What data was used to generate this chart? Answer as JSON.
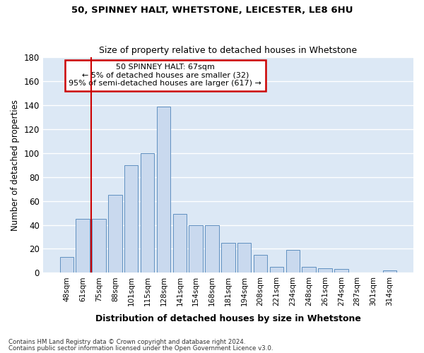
{
  "title1": "50, SPINNEY HALT, WHETSTONE, LEICESTER, LE8 6HU",
  "title2": "Size of property relative to detached houses in Whetstone",
  "xlabel": "Distribution of detached houses by size in Whetstone",
  "ylabel": "Number of detached properties",
  "categories": [
    "48sqm",
    "61sqm",
    "75sqm",
    "88sqm",
    "101sqm",
    "115sqm",
    "128sqm",
    "141sqm",
    "154sqm",
    "168sqm",
    "181sqm",
    "194sqm",
    "208sqm",
    "221sqm",
    "234sqm",
    "248sqm",
    "261sqm",
    "274sqm",
    "287sqm",
    "301sqm",
    "314sqm"
  ],
  "values": [
    13,
    45,
    45,
    65,
    90,
    100,
    139,
    49,
    40,
    40,
    25,
    25,
    15,
    5,
    19,
    5,
    4,
    3,
    0,
    0,
    2
  ],
  "bar_color": "#c9d9ee",
  "bar_edge_color": "#6090c0",
  "bar_width": 0.85,
  "ylim": [
    0,
    180
  ],
  "yticks": [
    0,
    20,
    40,
    60,
    80,
    100,
    120,
    140,
    160,
    180
  ],
  "red_line_x": 1.5,
  "annotation_title": "50 SPINNEY HALT: 67sqm",
  "annotation_line1": "← 5% of detached houses are smaller (32)",
  "annotation_line2": "95% of semi-detached houses are larger (617) →",
  "annotation_box_color": "#ffffff",
  "annotation_border_color": "#cc0000",
  "bg_color": "#dce8f5",
  "grid_color": "#ffffff",
  "footer1": "Contains HM Land Registry data © Crown copyright and database right 2024.",
  "footer2": "Contains public sector information licensed under the Open Government Licence v3.0."
}
